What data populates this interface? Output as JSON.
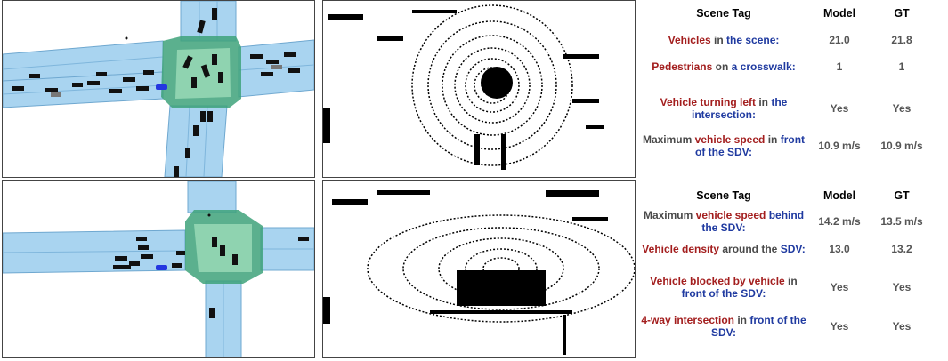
{
  "colors": {
    "keyword_red": "#a31e1e",
    "keyword_blue": "#1f3aa0",
    "plain_text": "#4a4a4a",
    "road_fill": "#a9d4f0",
    "intersection_fill": "#3ea27a",
    "vehicle": "#111111",
    "sdv": "#2437e0"
  },
  "table_top": {
    "header": {
      "tag": "Scene Tag",
      "model": "Model",
      "gt": "GT"
    },
    "rows": [
      {
        "tag_parts": [
          {
            "text": "Vehicles",
            "c": "red"
          },
          {
            "text": " in ",
            "c": "gray"
          },
          {
            "text": "the scene:",
            "c": "blue"
          }
        ],
        "model": "21.0",
        "gt": "21.8"
      },
      {
        "tag_parts": [
          {
            "text": "Pedestrians",
            "c": "red"
          },
          {
            "text": " on ",
            "c": "gray"
          },
          {
            "text": "a crosswalk:",
            "c": "blue"
          }
        ],
        "model": "1",
        "gt": "1"
      },
      {
        "tag_parts": [
          {
            "text": "Vehicle turning left",
            "c": "red"
          },
          {
            "text": " in ",
            "c": "gray"
          },
          {
            "text": "the intersection:",
            "c": "blue"
          }
        ],
        "model": "Yes",
        "gt": "Yes"
      },
      {
        "tag_parts": [
          {
            "text": "Maximum ",
            "c": "gray"
          },
          {
            "text": "vehicle speed",
            "c": "red"
          },
          {
            "text": " in ",
            "c": "gray"
          },
          {
            "text": "front of the SDV:",
            "c": "blue"
          }
        ],
        "model": "10.9 m/s",
        "gt": "10.9 m/s"
      }
    ]
  },
  "table_bottom": {
    "header": {
      "tag": "Scene Tag",
      "model": "Model",
      "gt": "GT"
    },
    "rows": [
      {
        "tag_parts": [
          {
            "text": "Maximum ",
            "c": "gray"
          },
          {
            "text": "vehicle speed",
            "c": "red"
          },
          {
            "text": " behind the SDV:",
            "c": "blue"
          }
        ],
        "model": "14.2 m/s",
        "gt": "13.5 m/s"
      },
      {
        "tag_parts": [
          {
            "text": "Vehicle density",
            "c": "red"
          },
          {
            "text": " around the ",
            "c": "gray"
          },
          {
            "text": "SDV:",
            "c": "blue"
          }
        ],
        "model": "13.0",
        "gt": "13.2"
      },
      {
        "tag_parts": [
          {
            "text": "Vehicle blocked by vehicle",
            "c": "red"
          },
          {
            "text": " in ",
            "c": "gray"
          },
          {
            "text": "front of the SDV:",
            "c": "blue"
          }
        ],
        "model": "Yes",
        "gt": "Yes"
      },
      {
        "tag_parts": [
          {
            "text": "4-way intersection",
            "c": "red"
          },
          {
            "text": " in ",
            "c": "gray"
          },
          {
            "text": "front of the SDV:",
            "c": "blue"
          }
        ],
        "model": "Yes",
        "gt": "Yes"
      }
    ]
  }
}
